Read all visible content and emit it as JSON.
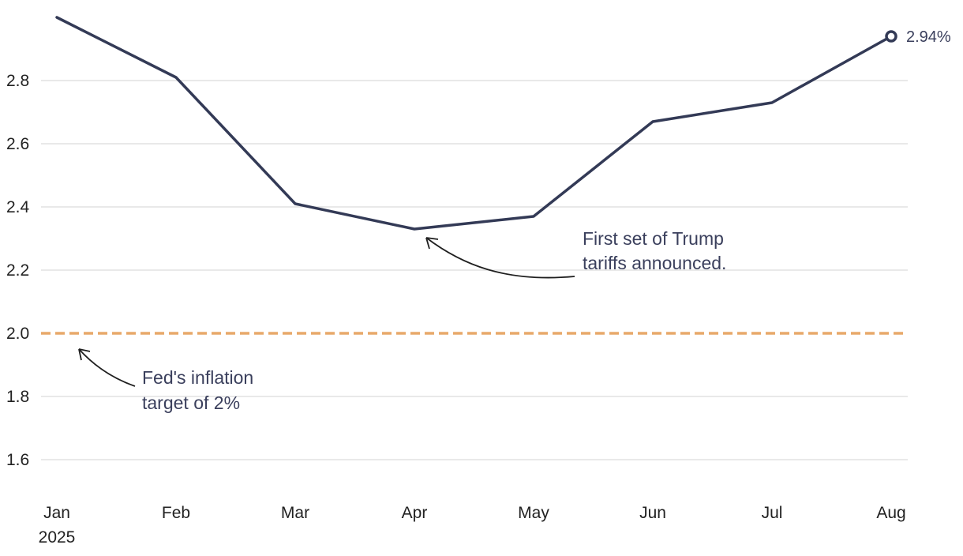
{
  "chart_data": {
    "type": "line",
    "x": [
      "Jan",
      "Feb",
      "Mar",
      "Apr",
      "May",
      "Jun",
      "Jul",
      "Aug"
    ],
    "x_year_label": "2025",
    "series": [
      {
        "values": [
          3.0,
          2.81,
          2.41,
          2.33,
          2.37,
          2.67,
          2.73,
          2.94
        ],
        "color": "#333a56"
      }
    ],
    "yticks": [
      1.6,
      1.8,
      2.0,
      2.2,
      2.4,
      2.6,
      2.8
    ],
    "ytick_labels": [
      "1.6",
      "1.8",
      "2.0",
      "2.2",
      "2.4",
      "2.6",
      "2.8"
    ],
    "ylim": [
      1.5,
      3.0
    ],
    "grid": true,
    "reference_line": {
      "value": 2.0,
      "color": "#e8a96a",
      "style": "dashed"
    },
    "end_label": "2.94%",
    "annotations": [
      {
        "lines": [
          "First set of Trump",
          "tariffs announced."
        ],
        "points_to": "Apr"
      },
      {
        "lines": [
          "Fed's inflation",
          "target of 2%"
        ],
        "points_to": "reference_line"
      }
    ]
  }
}
